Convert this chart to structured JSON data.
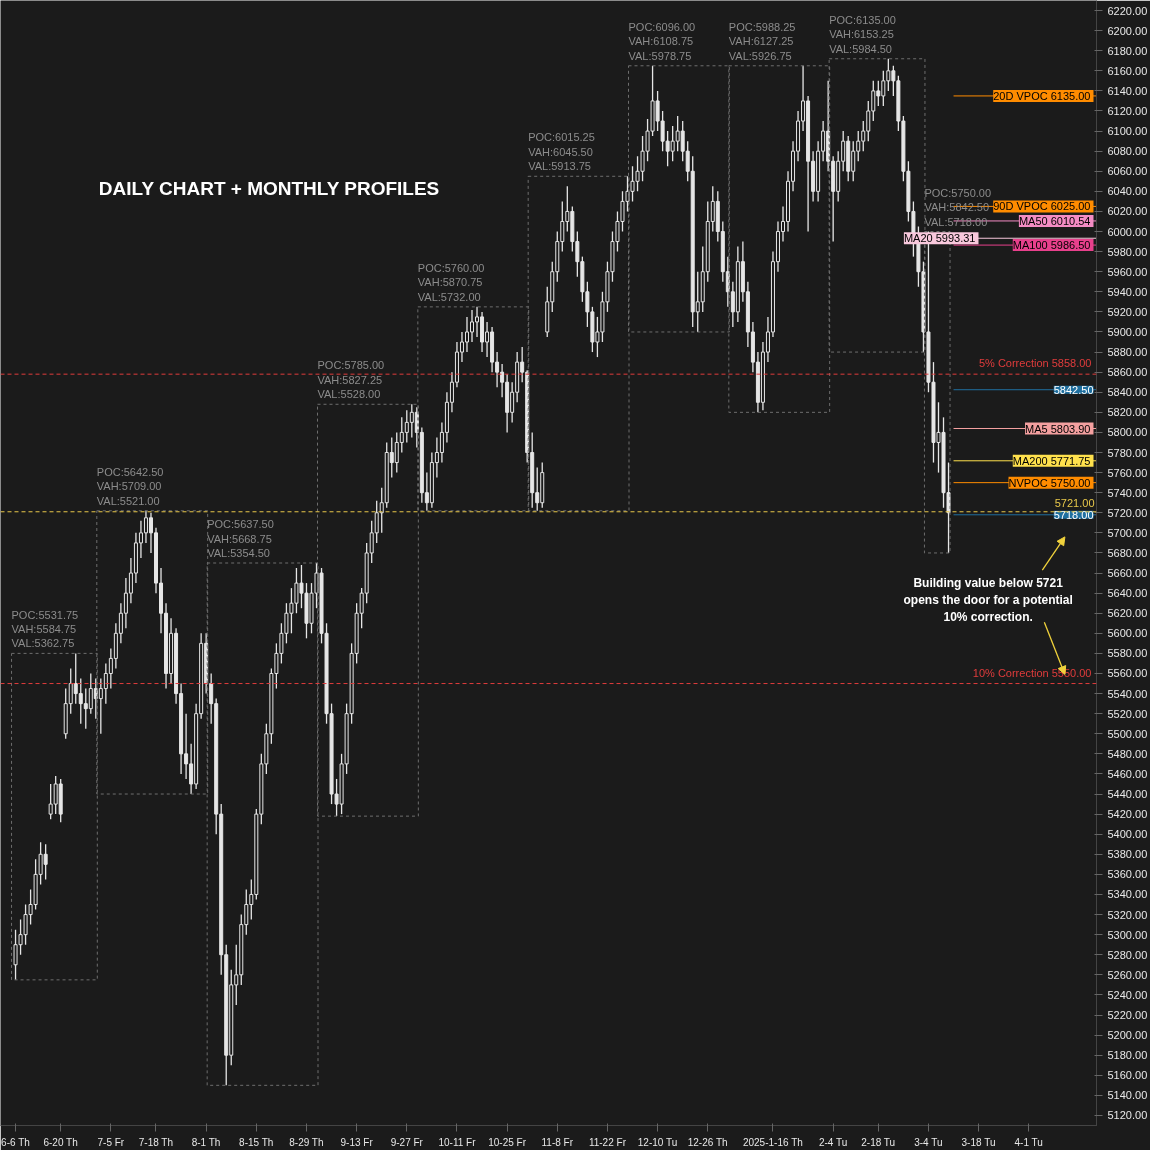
{
  "chart_data": {
    "type": "candlestick",
    "title": "DAILY CHART + MONTHLY PROFILES",
    "color": "#e6e6e6",
    "categories": [
      "6-6 Th",
      null,
      null,
      null,
      null,
      null,
      null,
      null,
      null,
      "6-20 Th",
      null,
      null,
      null,
      null,
      null,
      null,
      null,
      null,
      null,
      "7-5 Fr",
      null,
      null,
      null,
      null,
      null,
      null,
      null,
      null,
      "7-18 Th",
      null,
      null,
      null,
      null,
      null,
      null,
      null,
      null,
      null,
      "8-1 Th",
      null,
      null,
      null,
      null,
      null,
      null,
      null,
      null,
      null,
      "8-15 Th",
      null,
      null,
      null,
      null,
      null,
      null,
      null,
      null,
      null,
      "8-29 Th",
      null,
      null,
      null,
      null,
      null,
      null,
      null,
      null,
      null,
      "9-13 Fr",
      null,
      null,
      null,
      null,
      null,
      null,
      null,
      null,
      null,
      "9-27 Fr",
      null,
      null,
      null,
      null,
      null,
      null,
      null,
      null,
      null,
      "10-11 Fr",
      null,
      null,
      null,
      null,
      null,
      null,
      null,
      null,
      null,
      "10-25 Fr",
      null,
      null,
      null,
      null,
      null,
      null,
      null,
      null,
      null,
      "11-8 Fr",
      null,
      null,
      null,
      null,
      null,
      null,
      null,
      null,
      null,
      "11-22 Fr",
      null,
      null,
      null,
      null,
      null,
      null,
      null,
      null,
      null,
      "12-10 Tu",
      null,
      null,
      null,
      null,
      null,
      null,
      null,
      null,
      null,
      "12-26 Th",
      null,
      null,
      null,
      null,
      null,
      null,
      null,
      null,
      null,
      null,
      null,
      null,
      "2025-1-16 Th",
      null,
      null,
      null,
      null,
      null,
      null,
      null,
      null,
      null,
      null,
      null,
      "2-4 Tu",
      null,
      null,
      null,
      null,
      null,
      null,
      null,
      null,
      "2-18 Tu",
      null,
      null,
      null,
      null,
      null,
      null,
      null,
      null,
      null,
      "3-4 Tu",
      null,
      null,
      null,
      null,
      null,
      null,
      null,
      null,
      null,
      "3-18 Tu",
      null,
      null,
      null,
      null,
      null,
      null,
      null,
      null,
      null,
      "4-1 Tu",
      null,
      null,
      null,
      null,
      null,
      null,
      null,
      null,
      null,
      null,
      null,
      null,
      null
    ],
    "ohlc": [
      [
        5270,
        5305,
        5255,
        5290
      ],
      [
        5290,
        5315,
        5280,
        5300
      ],
      [
        5300,
        5330,
        5290,
        5320
      ],
      [
        5320,
        5345,
        5310,
        5330
      ],
      [
        5330,
        5375,
        5325,
        5360
      ],
      [
        5360,
        5392,
        5350,
        5380
      ],
      [
        5380,
        5390,
        5355,
        5370
      ],
      [
        5420,
        5450,
        5415,
        5430
      ],
      [
        5430,
        5458,
        5420,
        5450
      ],
      [
        5450,
        5455,
        5412,
        5420
      ],
      [
        5500,
        5545,
        5495,
        5530
      ],
      [
        5530,
        5565,
        5520,
        5550
      ],
      [
        5550,
        5580,
        5530,
        5540
      ],
      [
        5540,
        5555,
        5510,
        5530
      ],
      [
        5530,
        5545,
        5505,
        5525
      ],
      [
        5525,
        5560,
        5520,
        5545
      ],
      [
        5545,
        5555,
        5515,
        5535
      ],
      [
        5535,
        5555,
        5500,
        5545
      ],
      [
        5545,
        5570,
        5530,
        5560
      ],
      [
        5560,
        5585,
        5545,
        5575
      ],
      [
        5575,
        5610,
        5565,
        5600
      ],
      [
        5600,
        5630,
        5590,
        5620
      ],
      [
        5620,
        5655,
        5605,
        5640
      ],
      [
        5640,
        5675,
        5630,
        5660
      ],
      [
        5660,
        5700,
        5650,
        5690
      ],
      [
        5690,
        5712,
        5675,
        5700
      ],
      [
        5700,
        5722,
        5690,
        5715
      ],
      [
        5715,
        5720,
        5680,
        5700
      ],
      [
        5700,
        5705,
        5640,
        5650
      ],
      [
        5650,
        5665,
        5600,
        5620
      ],
      [
        5620,
        5630,
        5545,
        5560
      ],
      [
        5560,
        5615,
        5550,
        5600
      ],
      [
        5600,
        5605,
        5530,
        5540
      ],
      [
        5540,
        5550,
        5460,
        5480
      ],
      [
        5480,
        5520,
        5455,
        5470
      ],
      [
        5470,
        5490,
        5440,
        5450
      ],
      [
        5450,
        5530,
        5445,
        5520
      ],
      [
        5520,
        5600,
        5515,
        5590
      ],
      [
        5590,
        5600,
        5540,
        5550
      ],
      [
        5550,
        5560,
        5510,
        5530
      ],
      [
        5530,
        5535,
        5400,
        5420
      ],
      [
        5420,
        5430,
        5260,
        5280
      ],
      [
        5280,
        5290,
        5150,
        5180
      ],
      [
        5180,
        5265,
        5170,
        5250
      ],
      [
        5250,
        5290,
        5230,
        5260
      ],
      [
        5260,
        5320,
        5250,
        5310
      ],
      [
        5310,
        5345,
        5300,
        5330
      ],
      [
        5330,
        5355,
        5315,
        5340
      ],
      [
        5340,
        5425,
        5335,
        5420
      ],
      [
        5420,
        5480,
        5410,
        5470
      ],
      [
        5470,
        5510,
        5460,
        5500
      ],
      [
        5500,
        5565,
        5490,
        5560
      ],
      [
        5560,
        5590,
        5545,
        5580
      ],
      [
        5580,
        5610,
        5570,
        5600
      ],
      [
        5600,
        5630,
        5590,
        5620
      ],
      [
        5620,
        5645,
        5600,
        5630
      ],
      [
        5630,
        5665,
        5620,
        5650
      ],
      [
        5650,
        5668,
        5625,
        5640
      ],
      [
        5640,
        5650,
        5595,
        5610
      ],
      [
        5610,
        5650,
        5600,
        5640
      ],
      [
        5640,
        5670,
        5625,
        5660
      ],
      [
        5660,
        5665,
        5590,
        5600
      ],
      [
        5600,
        5610,
        5510,
        5520
      ],
      [
        5520,
        5530,
        5430,
        5440
      ],
      [
        5440,
        5455,
        5418,
        5430
      ],
      [
        5430,
        5480,
        5420,
        5470
      ],
      [
        5470,
        5530,
        5460,
        5520
      ],
      [
        5520,
        5590,
        5510,
        5580
      ],
      [
        5580,
        5630,
        5570,
        5620
      ],
      [
        5620,
        5645,
        5605,
        5640
      ],
      [
        5640,
        5690,
        5630,
        5680
      ],
      [
        5680,
        5712,
        5670,
        5700
      ],
      [
        5700,
        5732,
        5690,
        5720
      ],
      [
        5720,
        5745,
        5700,
        5730
      ],
      [
        5730,
        5790,
        5725,
        5780
      ],
      [
        5780,
        5795,
        5755,
        5770
      ],
      [
        5770,
        5800,
        5760,
        5790
      ],
      [
        5790,
        5815,
        5780,
        5800
      ],
      [
        5800,
        5822,
        5790,
        5810
      ],
      [
        5810,
        5828,
        5795,
        5820
      ],
      [
        5820,
        5825,
        5785,
        5800
      ],
      [
        5800,
        5805,
        5730,
        5740
      ],
      [
        5740,
        5760,
        5722,
        5730
      ],
      [
        5730,
        5780,
        5725,
        5770
      ],
      [
        5770,
        5795,
        5755,
        5780
      ],
      [
        5780,
        5810,
        5770,
        5800
      ],
      [
        5800,
        5840,
        5790,
        5830
      ],
      [
        5830,
        5860,
        5820,
        5850
      ],
      [
        5850,
        5890,
        5845,
        5880
      ],
      [
        5880,
        5900,
        5870,
        5890
      ],
      [
        5890,
        5915,
        5880,
        5900
      ],
      [
        5900,
        5922,
        5890,
        5910
      ],
      [
        5910,
        5925,
        5895,
        5915
      ],
      [
        5915,
        5920,
        5880,
        5890
      ],
      [
        5890,
        5910,
        5875,
        5900
      ],
      [
        5900,
        5905,
        5860,
        5870
      ],
      [
        5870,
        5880,
        5845,
        5860
      ],
      [
        5860,
        5868,
        5835,
        5850
      ],
      [
        5850,
        5858,
        5800,
        5820
      ],
      [
        5820,
        5850,
        5810,
        5840
      ],
      [
        5840,
        5880,
        5830,
        5870
      ],
      [
        5870,
        5885,
        5850,
        5860
      ],
      [
        5860,
        5862,
        5770,
        5780
      ],
      [
        5780,
        5800,
        5725,
        5740
      ],
      [
        5740,
        5765,
        5722,
        5730
      ],
      [
        5730,
        5770,
        5725,
        5760
      ],
      [
        5900,
        5945,
        5895,
        5930
      ],
      [
        5930,
        5970,
        5920,
        5960
      ],
      [
        5960,
        6000,
        5950,
        5990
      ],
      [
        5990,
        6030,
        5980,
        6010
      ],
      [
        6010,
        6045,
        6000,
        6020
      ],
      [
        6020,
        6025,
        5980,
        5990
      ],
      [
        5990,
        6000,
        5955,
        5970
      ],
      [
        5970,
        5975,
        5930,
        5940
      ],
      [
        5940,
        5950,
        5905,
        5920
      ],
      [
        5920,
        5925,
        5880,
        5890
      ],
      [
        5890,
        5915,
        5875,
        5900
      ],
      [
        5900,
        5940,
        5890,
        5930
      ],
      [
        5930,
        5970,
        5920,
        5960
      ],
      [
        5960,
        6000,
        5950,
        5990
      ],
      [
        5990,
        6020,
        5980,
        6010
      ],
      [
        6010,
        6040,
        6000,
        6030
      ],
      [
        6030,
        6055,
        6020,
        6040
      ],
      [
        6040,
        6065,
        6030,
        6050
      ],
      [
        6050,
        6075,
        6040,
        6060
      ],
      [
        6060,
        6095,
        6050,
        6080
      ],
      [
        6080,
        6112,
        6070,
        6100
      ],
      [
        6100,
        6165,
        6095,
        6130
      ],
      [
        6130,
        6140,
        6100,
        6110
      ],
      [
        6110,
        6120,
        6080,
        6090
      ],
      [
        6090,
        6100,
        6065,
        6080
      ],
      [
        6080,
        6105,
        6070,
        6090
      ],
      [
        6090,
        6115,
        6080,
        6100
      ],
      [
        6100,
        6110,
        6070,
        6080
      ],
      [
        6080,
        6090,
        6050,
        6060
      ],
      [
        6060,
        6075,
        5905,
        5920
      ],
      [
        5920,
        5960,
        5900,
        5930
      ],
      [
        5930,
        5985,
        5920,
        5960
      ],
      [
        5960,
        6030,
        5950,
        6010
      ],
      [
        6010,
        6045,
        6000,
        6030
      ],
      [
        6030,
        6040,
        5990,
        6000
      ],
      [
        6000,
        6010,
        5950,
        5960
      ],
      [
        5960,
        5975,
        5925,
        5940
      ],
      [
        5940,
        5950,
        5905,
        5920
      ],
      [
        5920,
        5985,
        5910,
        5970
      ],
      [
        5970,
        5990,
        5930,
        5940
      ],
      [
        5940,
        5950,
        5885,
        5900
      ],
      [
        5900,
        5910,
        5860,
        5870
      ],
      [
        5870,
        5880,
        5820,
        5830
      ],
      [
        5830,
        5890,
        5822,
        5880
      ],
      [
        5880,
        5915,
        5870,
        5900
      ],
      [
        5900,
        5980,
        5895,
        5970
      ],
      [
        5970,
        6010,
        5960,
        6000
      ],
      [
        6000,
        6025,
        5990,
        6010
      ],
      [
        6010,
        6060,
        6000,
        6050
      ],
      [
        6050,
        6090,
        6040,
        6080
      ],
      [
        6080,
        6120,
        6070,
        6110
      ],
      [
        6110,
        6165,
        6100,
        6130
      ],
      [
        6130,
        6135,
        6000,
        6070
      ],
      [
        6070,
        6080,
        6030,
        6040
      ],
      [
        6040,
        6090,
        6030,
        6080
      ],
      [
        6080,
        6110,
        6070,
        6100
      ],
      [
        6100,
        6150,
        6060,
        6070
      ],
      [
        6070,
        6075,
        5990,
        6040
      ],
      [
        6040,
        6080,
        6030,
        6070
      ],
      [
        6070,
        6100,
        6060,
        6090
      ],
      [
        6090,
        6095,
        6050,
        6060
      ],
      [
        6060,
        6090,
        6050,
        6080
      ],
      [
        6080,
        6100,
        6070,
        6090
      ],
      [
        6090,
        6110,
        6080,
        6100
      ],
      [
        6100,
        6130,
        6090,
        6120
      ],
      [
        6120,
        6150,
        6110,
        6140
      ],
      [
        6140,
        6150,
        6125,
        6135
      ],
      [
        6135,
        6160,
        6125,
        6150
      ],
      [
        6150,
        6172,
        6140,
        6160
      ],
      [
        6160,
        6165,
        6135,
        6150
      ],
      [
        6150,
        6155,
        6100,
        6110
      ],
      [
        6110,
        6115,
        6050,
        6060
      ],
      [
        6060,
        6070,
        6010,
        6020
      ],
      [
        6020,
        6030,
        5975,
        5990
      ],
      [
        5990,
        6005,
        5945,
        5960
      ],
      [
        5960,
        5970,
        5880,
        5900
      ],
      [
        5900,
        6000,
        5840,
        5850
      ],
      [
        5850,
        5870,
        5770,
        5790
      ],
      [
        5790,
        5830,
        5760,
        5800
      ],
      [
        5800,
        5815,
        5725,
        5740
      ],
      [
        5740,
        5770,
        5680,
        5720
      ],
      null,
      null,
      null,
      null,
      null,
      null,
      null,
      null,
      null,
      null,
      null,
      null,
      null,
      null,
      null,
      null,
      null,
      null,
      null,
      null,
      null,
      null,
      null,
      null,
      null,
      null,
      null,
      null,
      null
    ],
    "ylim": [
      5110,
      6230
    ],
    "yticks": [
      {
        "value": 5120,
        "label": "5120.00"
      },
      {
        "value": 5140,
        "label": "5140.00"
      },
      {
        "value": 5160,
        "label": "5160.00"
      },
      {
        "value": 5180,
        "label": "5180.00"
      },
      {
        "value": 5200,
        "label": "5200.00"
      },
      {
        "value": 5220,
        "label": "5220.00"
      },
      {
        "value": 5240,
        "label": "5240.00"
      },
      {
        "value": 5260,
        "label": "5260.00"
      },
      {
        "value": 5280,
        "label": "5280.00"
      },
      {
        "value": 5300,
        "label": "5300.00"
      },
      {
        "value": 5320,
        "label": "5320.00"
      },
      {
        "value": 5340,
        "label": "5340.00"
      },
      {
        "value": 5360,
        "label": "5360.00"
      },
      {
        "value": 5380,
        "label": "5380.00"
      },
      {
        "value": 5400,
        "label": "5400.00"
      },
      {
        "value": 5420,
        "label": "5420.00"
      },
      {
        "value": 5440,
        "label": "5440.00"
      },
      {
        "value": 5460,
        "label": "5460.00"
      },
      {
        "value": 5480,
        "label": "5480.00"
      },
      {
        "value": 5500,
        "label": "5500.00"
      },
      {
        "value": 5520,
        "label": "5520.00"
      },
      {
        "value": 5540,
        "label": "5540.00"
      },
      {
        "value": 5560,
        "label": "5560.00"
      },
      {
        "value": 5580,
        "label": "5580.00"
      },
      {
        "value": 5600,
        "label": "5600.00"
      },
      {
        "value": 5620,
        "label": "5620.00"
      },
      {
        "value": 5640,
        "label": "5640.00"
      },
      {
        "value": 5660,
        "label": "5660.00"
      },
      {
        "value": 5680,
        "label": "5680.00"
      },
      {
        "value": 5700,
        "label": "5700.00"
      },
      {
        "value": 5720,
        "label": "5720.00"
      },
      {
        "value": 5740,
        "label": "5740.00"
      },
      {
        "value": 5760,
        "label": "5760.00"
      },
      {
        "value": 5780,
        "label": "5780.00"
      },
      {
        "value": 5800,
        "label": "5800.00"
      },
      {
        "value": 5820,
        "label": "5820.00"
      },
      {
        "value": 5840,
        "label": "5840.00"
      },
      {
        "value": 5860,
        "label": "5860.00"
      },
      {
        "value": 5880,
        "label": "5880.00"
      },
      {
        "value": 5900,
        "label": "5900.00"
      },
      {
        "value": 5920,
        "label": "5920.00"
      },
      {
        "value": 5940,
        "label": "5940.00"
      },
      {
        "value": 5960,
        "label": "5960.00"
      },
      {
        "value": 5980,
        "label": "5980.00"
      },
      {
        "value": 6000,
        "label": "6000.00"
      },
      {
        "value": 6020,
        "label": "6020.00"
      },
      {
        "value": 6040,
        "label": "6040.00"
      },
      {
        "value": 6060,
        "label": "6060.00"
      },
      {
        "value": 6080,
        "label": "6080.00"
      },
      {
        "value": 6100,
        "label": "6100.00"
      },
      {
        "value": 6120,
        "label": "6120.00"
      },
      {
        "value": 6140,
        "label": "6140.00"
      },
      {
        "value": 6160,
        "label": "6160.00"
      },
      {
        "value": 6180,
        "label": "6180.00"
      },
      {
        "value": 6200,
        "label": "6200.00"
      },
      {
        "value": 6220,
        "label": "6220.00"
      }
    ],
    "ref_lines": [
      {
        "axis": "y",
        "value": 6135,
        "label": "20D VPOC  6135.00",
        "color": "#ff8c00"
      },
      {
        "axis": "y",
        "value": 6025,
        "label": "90D VPOC  6025.00",
        "color": "#ff8c00"
      },
      {
        "axis": "y",
        "value": 6010.54,
        "label": "MA50  6010.54",
        "color": "#f48cc4"
      },
      {
        "axis": "y",
        "value": 5986.5,
        "label": "MA100  5986.50",
        "color": "#e8408c"
      },
      {
        "axis": "y",
        "value": 5993.31,
        "label": "MA20  5993.31",
        "color": "#f8c8dc"
      },
      {
        "axis": "y",
        "value": 5842.5,
        "label": "5842.50",
        "color": "#1f6f9f"
      },
      {
        "axis": "y",
        "value": 5803.9,
        "label": "MA5  5803.90",
        "color": "#f4a0a0"
      },
      {
        "axis": "y",
        "value": 5771.75,
        "label": "MA200  5771.75",
        "color": "#ffe14d"
      },
      {
        "axis": "y",
        "value": 5750,
        "label": "NVPOC  5750.00",
        "color": "#ff8c00"
      },
      {
        "axis": "y",
        "value": 5718,
        "label": "5718.00",
        "color": "#1f6f9f"
      },
      {
        "axis": "y",
        "value": 5721,
        "label": "5721.00",
        "color": "#e8c84a",
        "line_style": "dashed"
      },
      {
        "axis": "y",
        "value": 5858,
        "label": "5% Correction  5858.00",
        "color": "#e03c3c",
        "line_style": "dashed"
      },
      {
        "axis": "y",
        "value": 5550,
        "label": "10% Correction  5550.00",
        "color": "#e03c3c",
        "line_style": "dashed"
      }
    ],
    "annotations": [
      "POC:5531.75\nVAH:5584.75\nVAL:5362.75",
      "POC:5642.50\nVAH:5709.00\nVAL:5521.00",
      "POC:5637.50\nVAH:5668.75\nVAL:5354.50",
      "POC:5785.00\nVAH:5827.25\nVAL:5528.00",
      "POC:5760.00\nVAH:5870.75\nVAL:5732.00",
      "POC:6015.25\nVAH:6045.50\nVAL:5913.75",
      "POC:6096.00\nVAH:6108.75\nVAL:5978.75",
      "POC:5988.25\nVAH:6127.25\nVAL:5926.75",
      "POC:6135.00\nVAH:6153.25\nVAL:5984.50",
      "POC:5750.00\nVAH:5842.50\nVAL:5718.00",
      "Building value below 5721\nopens the door for a potential\n10% correction."
    ]
  }
}
